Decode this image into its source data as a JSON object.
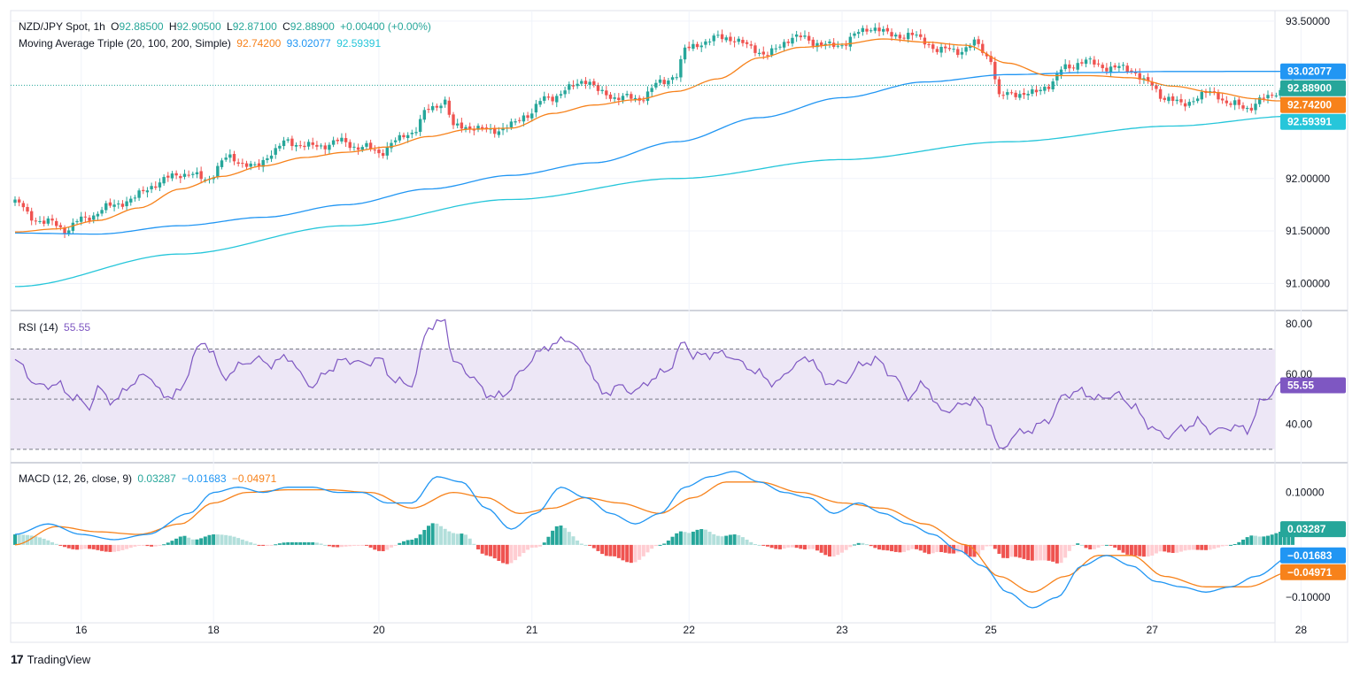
{
  "title_bar": {
    "symbol": "NZD/JPY Spot, 1h",
    "open_label": "O",
    "open": "92.88500",
    "high_label": "H",
    "high": "92.90500",
    "low_label": "L",
    "low": "92.87100",
    "close_label": "C",
    "close": "92.88900",
    "change": "+0.00400 (+0.00%)"
  },
  "ma_legend": {
    "name": "Moving Average Triple (20, 100, 200, Simple)",
    "ma20": "92.74200",
    "ma100": "93.02077",
    "ma200": "92.59391"
  },
  "rsi_legend": {
    "name": "RSI (14)",
    "value": "55.55"
  },
  "macd_legend": {
    "name": "MACD (12, 26, close, 9)",
    "hist": "0.03287",
    "macd": "−0.01683",
    "signal": "−0.04971"
  },
  "footer": {
    "brand": "TradingView",
    "logo": "17"
  },
  "colors": {
    "up": "#26a69a",
    "down": "#ef5350",
    "ma20": "#f7821b",
    "ma100": "#2196f3",
    "ma200": "#26c6da",
    "rsi": "#7e57c2",
    "rsi_band": "#ede7f6",
    "macd": "#2196f3",
    "signal": "#f7821b",
    "hist_up_strong": "#26a69a",
    "hist_up_weak": "#b2dfdb",
    "hist_down_strong": "#ef5350",
    "hist_down_weak": "#ffcdd2"
  },
  "chart_data": [
    {
      "type": "candlestick",
      "title": "NZD/JPY Spot, 1h",
      "ylim": [
        90.75,
        93.6
      ],
      "y_ticks": [
        "93.50000",
        "92.00000",
        "91.50000",
        "91.00000"
      ],
      "x_ticks": [
        "16",
        "18",
        "20",
        "21",
        "22",
        "23",
        "25",
        "27",
        "28"
      ],
      "x_tick_index": [
        16,
        48,
        88,
        125,
        163,
        200,
        236,
        275,
        311
      ],
      "last_price": 92.889,
      "price_badges": [
        {
          "label": "93.02077",
          "value": 93.02077,
          "color": "#2196f3"
        },
        {
          "label": "92.88900",
          "value": 92.889,
          "color": "#26a69a"
        },
        {
          "label": "92.74200",
          "value": 92.742,
          "color": "#f7821b"
        },
        {
          "label": "92.59391",
          "value": 92.59391,
          "color": "#26c6da"
        }
      ],
      "close_anchors": [
        [
          0,
          91.78
        ],
        [
          4,
          91.63
        ],
        [
          8,
          91.58
        ],
        [
          12,
          91.52
        ],
        [
          16,
          91.6
        ],
        [
          22,
          91.72
        ],
        [
          28,
          91.8
        ],
        [
          34,
          91.95
        ],
        [
          40,
          92.05
        ],
        [
          46,
          92.0
        ],
        [
          52,
          92.2
        ],
        [
          58,
          92.1
        ],
        [
          62,
          92.25
        ],
        [
          66,
          92.35
        ],
        [
          72,
          92.3
        ],
        [
          78,
          92.35
        ],
        [
          84,
          92.3
        ],
        [
          88,
          92.25
        ],
        [
          92,
          92.35
        ],
        [
          96,
          92.45
        ],
        [
          100,
          92.65
        ],
        [
          104,
          92.75
        ],
        [
          106,
          92.48
        ],
        [
          110,
          92.5
        ],
        [
          114,
          92.45
        ],
        [
          120,
          92.5
        ],
        [
          124,
          92.62
        ],
        [
          128,
          92.75
        ],
        [
          134,
          92.85
        ],
        [
          138,
          92.95
        ],
        [
          142,
          92.8
        ],
        [
          146,
          92.78
        ],
        [
          150,
          92.75
        ],
        [
          156,
          92.9
        ],
        [
          160,
          93.0
        ],
        [
          162,
          93.22
        ],
        [
          166,
          93.3
        ],
        [
          172,
          93.35
        ],
        [
          178,
          93.25
        ],
        [
          182,
          93.18
        ],
        [
          188,
          93.35
        ],
        [
          194,
          93.3
        ],
        [
          198,
          93.25
        ],
        [
          204,
          93.38
        ],
        [
          208,
          93.45
        ],
        [
          212,
          93.35
        ],
        [
          216,
          93.38
        ],
        [
          220,
          93.3
        ],
        [
          224,
          93.22
        ],
        [
          228,
          93.22
        ],
        [
          232,
          93.28
        ],
        [
          236,
          93.15
        ],
        [
          238,
          92.77
        ],
        [
          242,
          92.82
        ],
        [
          246,
          92.8
        ],
        [
          250,
          92.9
        ],
        [
          254,
          93.05
        ],
        [
          258,
          93.12
        ],
        [
          262,
          93.08
        ],
        [
          266,
          93.05
        ],
        [
          270,
          93.04
        ],
        [
          274,
          92.9
        ],
        [
          278,
          92.78
        ],
        [
          282,
          92.7
        ],
        [
          286,
          92.78
        ],
        [
          290,
          92.82
        ],
        [
          294,
          92.7
        ],
        [
          298,
          92.68
        ],
        [
          302,
          92.75
        ],
        [
          306,
          92.85
        ],
        [
          309,
          92.889
        ]
      ],
      "ma20_anchors": [
        [
          0,
          91.49
        ],
        [
          10,
          91.52
        ],
        [
          20,
          91.6
        ],
        [
          30,
          91.72
        ],
        [
          40,
          91.9
        ],
        [
          50,
          92.02
        ],
        [
          60,
          92.12
        ],
        [
          70,
          92.2
        ],
        [
          80,
          92.25
        ],
        [
          90,
          92.3
        ],
        [
          100,
          92.4
        ],
        [
          110,
          92.47
        ],
        [
          120,
          92.48
        ],
        [
          130,
          92.62
        ],
        [
          140,
          92.7
        ],
        [
          150,
          92.75
        ],
        [
          160,
          92.83
        ],
        [
          170,
          92.95
        ],
        [
          180,
          93.15
        ],
        [
          190,
          93.25
        ],
        [
          200,
          93.28
        ],
        [
          210,
          93.33
        ],
        [
          220,
          93.3
        ],
        [
          230,
          93.27
        ],
        [
          240,
          93.1
        ],
        [
          250,
          92.98
        ],
        [
          260,
          92.98
        ],
        [
          270,
          92.96
        ],
        [
          280,
          92.88
        ],
        [
          290,
          92.82
        ],
        [
          300,
          92.76
        ],
        [
          305,
          92.74
        ],
        [
          309,
          92.742
        ]
      ],
      "ma100_anchors": [
        [
          0,
          91.48
        ],
        [
          20,
          91.47
        ],
        [
          40,
          91.55
        ],
        [
          60,
          91.63
        ],
        [
          80,
          91.75
        ],
        [
          100,
          91.9
        ],
        [
          120,
          92.03
        ],
        [
          140,
          92.15
        ],
        [
          160,
          92.35
        ],
        [
          180,
          92.58
        ],
        [
          200,
          92.77
        ],
        [
          220,
          92.92
        ],
        [
          240,
          92.99
        ],
        [
          260,
          93.01
        ],
        [
          280,
          93.02
        ],
        [
          309,
          93.02077
        ]
      ],
      "ma200_anchors": [
        [
          0,
          90.97
        ],
        [
          40,
          91.28
        ],
        [
          80,
          91.55
        ],
        [
          120,
          91.8
        ],
        [
          160,
          92.0
        ],
        [
          200,
          92.18
        ],
        [
          240,
          92.35
        ],
        [
          280,
          92.5
        ],
        [
          309,
          92.59391
        ]
      ]
    },
    {
      "type": "line",
      "title": "RSI (14)",
      "ylim": [
        25,
        85
      ],
      "y_ticks": [
        "80.00",
        "60.00",
        "40.00"
      ],
      "bands": [
        70,
        50,
        30
      ],
      "rsi_anchors": [
        [
          0,
          65
        ],
        [
          6,
          55
        ],
        [
          10,
          56
        ],
        [
          14,
          51
        ],
        [
          18,
          47
        ],
        [
          20,
          54
        ],
        [
          24,
          49
        ],
        [
          28,
          56
        ],
        [
          32,
          60
        ],
        [
          36,
          51
        ],
        [
          40,
          53
        ],
        [
          44,
          70
        ],
        [
          46,
          72
        ],
        [
          48,
          69
        ],
        [
          50,
          58
        ],
        [
          54,
          63
        ],
        [
          58,
          66
        ],
        [
          62,
          64
        ],
        [
          66,
          67
        ],
        [
          70,
          58
        ],
        [
          72,
          55
        ],
        [
          76,
          62
        ],
        [
          80,
          66
        ],
        [
          84,
          64
        ],
        [
          88,
          66
        ],
        [
          92,
          57
        ],
        [
          96,
          56
        ],
        [
          100,
          79
        ],
        [
          104,
          81
        ],
        [
          106,
          65
        ],
        [
          110,
          60
        ],
        [
          114,
          52
        ],
        [
          118,
          51
        ],
        [
          122,
          60
        ],
        [
          126,
          68
        ],
        [
          130,
          72
        ],
        [
          134,
          74
        ],
        [
          138,
          66
        ],
        [
          142,
          52
        ],
        [
          146,
          55
        ],
        [
          150,
          53
        ],
        [
          154,
          58
        ],
        [
          158,
          62
        ],
        [
          162,
          73
        ],
        [
          164,
          67
        ],
        [
          168,
          68
        ],
        [
          172,
          68
        ],
        [
          176,
          64
        ],
        [
          180,
          60
        ],
        [
          184,
          56
        ],
        [
          188,
          63
        ],
        [
          192,
          67
        ],
        [
          196,
          57
        ],
        [
          200,
          56
        ],
        [
          204,
          63
        ],
        [
          208,
          66
        ],
        [
          212,
          60
        ],
        [
          216,
          51
        ],
        [
          220,
          56
        ],
        [
          224,
          45
        ],
        [
          228,
          47
        ],
        [
          232,
          50
        ],
        [
          236,
          40
        ],
        [
          238,
          29
        ],
        [
          242,
          36
        ],
        [
          246,
          38
        ],
        [
          250,
          42
        ],
        [
          254,
          52
        ],
        [
          258,
          53
        ],
        [
          262,
          50
        ],
        [
          266,
          52
        ],
        [
          270,
          48
        ],
        [
          274,
          40
        ],
        [
          278,
          35
        ],
        [
          282,
          38
        ],
        [
          286,
          41
        ],
        [
          290,
          37
        ],
        [
          294,
          39
        ],
        [
          298,
          38
        ],
        [
          302,
          50
        ],
        [
          306,
          55.3
        ],
        [
          309,
          55.55
        ]
      ]
    },
    {
      "type": "line+bar",
      "title": "MACD (12, 26, close, 9)",
      "ylim": [
        -0.125,
        0.155
      ],
      "y_ticks": [
        "0.10000",
        "−0.10000"
      ],
      "macd_anchors": [
        [
          0,
          0.02
        ],
        [
          8,
          0.04
        ],
        [
          16,
          0.02
        ],
        [
          24,
          0.01
        ],
        [
          32,
          0.02
        ],
        [
          42,
          0.06
        ],
        [
          48,
          0.1
        ],
        [
          54,
          0.11
        ],
        [
          60,
          0.1
        ],
        [
          66,
          0.11
        ],
        [
          72,
          0.11
        ],
        [
          78,
          0.1
        ],
        [
          84,
          0.1
        ],
        [
          90,
          0.08
        ],
        [
          96,
          0.08
        ],
        [
          102,
          0.13
        ],
        [
          108,
          0.12
        ],
        [
          114,
          0.07
        ],
        [
          120,
          0.03
        ],
        [
          126,
          0.06
        ],
        [
          132,
          0.11
        ],
        [
          138,
          0.09
        ],
        [
          144,
          0.06
        ],
        [
          150,
          0.04
        ],
        [
          156,
          0.06
        ],
        [
          162,
          0.11
        ],
        [
          168,
          0.13
        ],
        [
          174,
          0.14
        ],
        [
          180,
          0.12
        ],
        [
          186,
          0.1
        ],
        [
          192,
          0.09
        ],
        [
          198,
          0.06
        ],
        [
          204,
          0.08
        ],
        [
          210,
          0.06
        ],
        [
          216,
          0.04
        ],
        [
          222,
          0.02
        ],
        [
          228,
          -0.01
        ],
        [
          234,
          -0.04
        ],
        [
          240,
          -0.09
        ],
        [
          246,
          -0.12
        ],
        [
          252,
          -0.1
        ],
        [
          258,
          -0.04
        ],
        [
          264,
          -0.02
        ],
        [
          270,
          -0.04
        ],
        [
          276,
          -0.07
        ],
        [
          282,
          -0.08
        ],
        [
          288,
          -0.09
        ],
        [
          294,
          -0.08
        ],
        [
          300,
          -0.06
        ],
        [
          309,
          -0.02
        ]
      ],
      "signal_anchors": [
        [
          0,
          0.0
        ],
        [
          10,
          0.035
        ],
        [
          20,
          0.025
        ],
        [
          30,
          0.02
        ],
        [
          40,
          0.04
        ],
        [
          48,
          0.08
        ],
        [
          56,
          0.1
        ],
        [
          66,
          0.105
        ],
        [
          76,
          0.105
        ],
        [
          86,
          0.1
        ],
        [
          96,
          0.07
        ],
        [
          106,
          0.1
        ],
        [
          114,
          0.09
        ],
        [
          122,
          0.06
        ],
        [
          130,
          0.07
        ],
        [
          138,
          0.09
        ],
        [
          146,
          0.08
        ],
        [
          156,
          0.06
        ],
        [
          164,
          0.09
        ],
        [
          172,
          0.12
        ],
        [
          180,
          0.12
        ],
        [
          190,
          0.1
        ],
        [
          200,
          0.08
        ],
        [
          210,
          0.07
        ],
        [
          220,
          0.04
        ],
        [
          230,
          0.0
        ],
        [
          238,
          -0.06
        ],
        [
          246,
          -0.09
        ],
        [
          254,
          -0.06
        ],
        [
          262,
          -0.02
        ],
        [
          270,
          -0.02
        ],
        [
          278,
          -0.06
        ],
        [
          288,
          -0.08
        ],
        [
          298,
          -0.08
        ],
        [
          309,
          -0.05
        ]
      ]
    }
  ]
}
